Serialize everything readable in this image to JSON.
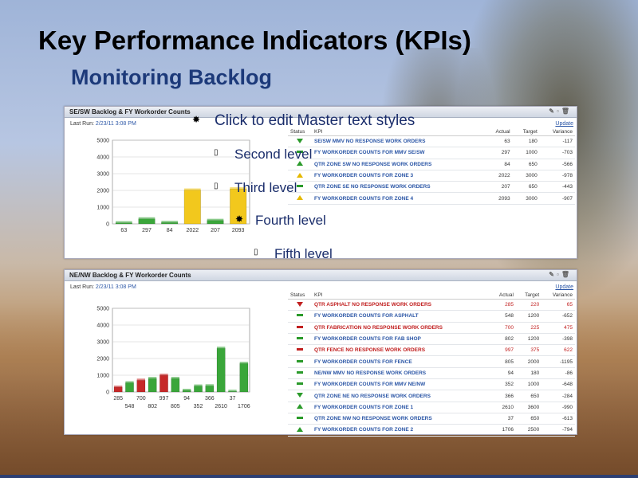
{
  "slide": {
    "title": "Key Performance Indicators (KPIs)",
    "subtitle": "Monitoring Backlog",
    "master_levels": [
      "Click to edit Master text styles",
      "Second level",
      "Third level",
      "Fourth level",
      "Fifth level"
    ]
  },
  "panel1": {
    "title": "SE/SW Backlog & FY Workorder Counts",
    "last_run_label": "Last Run:",
    "last_run": "2/23/11 3:08 PM",
    "update_link": "Update",
    "headers": [
      "Status",
      "KPI",
      "Actual",
      "Target",
      "Variance"
    ],
    "rows": [
      {
        "status": "down-green",
        "kpi": "SE/SW MMV NO RESPONSE WORK ORDERS",
        "actual": "63",
        "target": "180",
        "variance": "-117",
        "red": false
      },
      {
        "status": "dash-green",
        "kpi": "FY WORKORDER COUNTS FOR MMV SE/SW",
        "actual": "297",
        "target": "1000",
        "variance": "-703",
        "red": false
      },
      {
        "status": "up-green",
        "kpi": "QTR ZONE SW NO RESPONSE WORK ORDERS",
        "actual": "84",
        "target": "650",
        "variance": "-566",
        "red": false
      },
      {
        "status": "up-yellow",
        "kpi": "FY WORKORDER COUNTS FOR ZONE 3",
        "actual": "2022",
        "target": "3000",
        "variance": "-978",
        "red": false
      },
      {
        "status": "dash-green",
        "kpi": "QTR ZONE SE NO RESPONSE WORK ORDERS",
        "actual": "207",
        "target": "650",
        "variance": "-443",
        "red": false
      },
      {
        "status": "up-yellow",
        "kpi": "FY WORKORDER COUNTS FOR ZONE 4",
        "actual": "2093",
        "target": "3000",
        "variance": "-907",
        "red": false
      }
    ]
  },
  "panel2": {
    "title": "NE/NW Backlog & FY Workorder Counts",
    "last_run_label": "Last Run:",
    "last_run": "2/23/11 3:08 PM",
    "update_link": "Update",
    "headers": [
      "Status",
      "KPI",
      "Actual",
      "Target",
      "Variance"
    ],
    "rows": [
      {
        "status": "down-red",
        "kpi": "QTR ASPHALT NO RESPONSE WORK ORDERS",
        "actual": "285",
        "target": "220",
        "variance": "65",
        "red": true
      },
      {
        "status": "dash-green",
        "kpi": "FY WORKORDER COUNTS FOR ASPHALT",
        "actual": "548",
        "target": "1200",
        "variance": "-652",
        "red": false
      },
      {
        "status": "dash-red",
        "kpi": "QTR FABRICATION NO RESPONSE WORK ORDERS",
        "actual": "700",
        "target": "225",
        "variance": "475",
        "red": true
      },
      {
        "status": "dash-green",
        "kpi": "FY WORKORDER COUNTS FOR FAB SHOP",
        "actual": "802",
        "target": "1200",
        "variance": "-398",
        "red": false
      },
      {
        "status": "dash-red",
        "kpi": "QTR FENCE NO RESPONSE WORK ORDERS",
        "actual": "997",
        "target": "375",
        "variance": "622",
        "red": true
      },
      {
        "status": "dash-green",
        "kpi": "FY WORKORDER COUNTS FOR FENCE",
        "actual": "805",
        "target": "2000",
        "variance": "-1195",
        "red": false
      },
      {
        "status": "dash-green",
        "kpi": "NE/NW MMV NO RESPONSE WORK ORDERS",
        "actual": "94",
        "target": "180",
        "variance": "-86",
        "red": false
      },
      {
        "status": "dash-green",
        "kpi": "FY WORKORDER COUNTS FOR MMV NE/NW",
        "actual": "352",
        "target": "1000",
        "variance": "-648",
        "red": false
      },
      {
        "status": "down-green",
        "kpi": "QTR ZONE NE NO RESPONSE WORK ORDERS",
        "actual": "366",
        "target": "650",
        "variance": "-284",
        "red": false
      },
      {
        "status": "up-green",
        "kpi": "FY WORKORDER COUNTS FOR ZONE 1",
        "actual": "2610",
        "target": "3600",
        "variance": "-990",
        "red": false
      },
      {
        "status": "dash-green",
        "kpi": "QTR ZONE NW NO RESPONSE WORK ORDERS",
        "actual": "37",
        "target": "650",
        "variance": "-613",
        "red": false
      },
      {
        "status": "up-green",
        "kpi": "FY WORKORDER COUNTS FOR ZONE 2",
        "actual": "1706",
        "target": "2500",
        "variance": "-794",
        "red": false
      }
    ]
  },
  "chart_data": [
    {
      "type": "bar",
      "categories": [
        "63",
        "297",
        "84",
        "2022",
        "207",
        "2093"
      ],
      "values": [
        63,
        297,
        84,
        2022,
        207,
        2093
      ],
      "colors": [
        "#3aa63a",
        "#3aa63a",
        "#3aa63a",
        "#f2c81d",
        "#3aa63a",
        "#f2c81d"
      ],
      "ylim": [
        0,
        5000
      ],
      "yticks": [
        "0",
        "1000",
        "2000",
        "3000",
        "4000",
        "5000"
      ]
    },
    {
      "type": "bar",
      "categories": [
        "285",
        "548",
        "700",
        "802",
        "997",
        "805",
        "94",
        "352",
        "366",
        "2610",
        "37",
        "1706"
      ],
      "values": [
        285,
        548,
        700,
        802,
        997,
        805,
        94,
        352,
        366,
        2610,
        37,
        1706
      ],
      "colors": [
        "#c62828",
        "#3aa63a",
        "#c62828",
        "#3aa63a",
        "#c62828",
        "#3aa63a",
        "#3aa63a",
        "#3aa63a",
        "#3aa63a",
        "#3aa63a",
        "#3aa63a",
        "#3aa63a"
      ],
      "ylim": [
        0,
        5000
      ],
      "yticks": [
        "0",
        "1000",
        "2000",
        "3000",
        "4000",
        "5000"
      ]
    }
  ]
}
